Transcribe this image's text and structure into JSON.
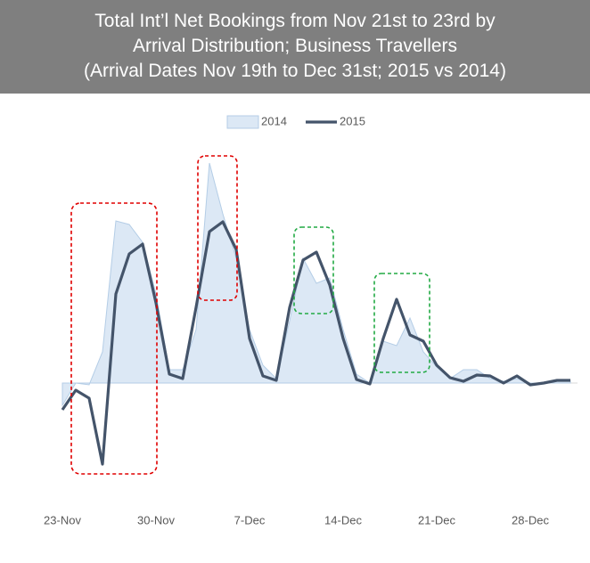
{
  "chart_data": {
    "type": "area-line",
    "title": [
      "Total Int’l Net Bookings from Nov 21st to 23rd by",
      "Arrival Distribution; Business Travellers",
      "(Arrival Dates Nov 19th to Dec 31st; 2015 vs 2014)"
    ],
    "categories": [
      "23-Nov",
      null,
      null,
      null,
      null,
      null,
      null,
      "30-Nov",
      null,
      null,
      null,
      null,
      null,
      null,
      "7-Dec",
      null,
      null,
      null,
      null,
      null,
      null,
      "14-Dec",
      null,
      null,
      null,
      null,
      null,
      null,
      "21-Dec",
      null,
      null,
      null,
      null,
      null,
      null,
      "28-Dec",
      null,
      null,
      null
    ],
    "series": [
      {
        "name": "2014",
        "color": "#dce8f5",
        "line_color": "#b4cde6",
        "style": "area",
        "values": [
          -25,
          0,
          -2,
          35,
          182,
          178,
          158,
          100,
          15,
          15,
          60,
          247,
          190,
          140,
          60,
          20,
          5,
          70,
          140,
          112,
          118,
          60,
          10,
          0,
          47,
          42,
          73,
          35,
          18,
          5,
          15,
          15,
          5,
          2,
          5,
          0,
          0,
          2,
          2
        ]
      },
      {
        "name": "2015",
        "color": "#44546a",
        "style": "line",
        "values": [
          -30,
          -8,
          -17,
          -91,
          100,
          145,
          156,
          90,
          10,
          5,
          85,
          170,
          181,
          150,
          50,
          8,
          3,
          85,
          138,
          147,
          110,
          50,
          4,
          -1,
          50,
          94,
          54,
          47,
          20,
          6,
          2,
          9,
          8,
          0,
          8,
          -2,
          0,
          3,
          3
        ]
      }
    ],
    "ylim": [
      -120,
      260
    ],
    "grid": false,
    "legend": "top"
  }
}
